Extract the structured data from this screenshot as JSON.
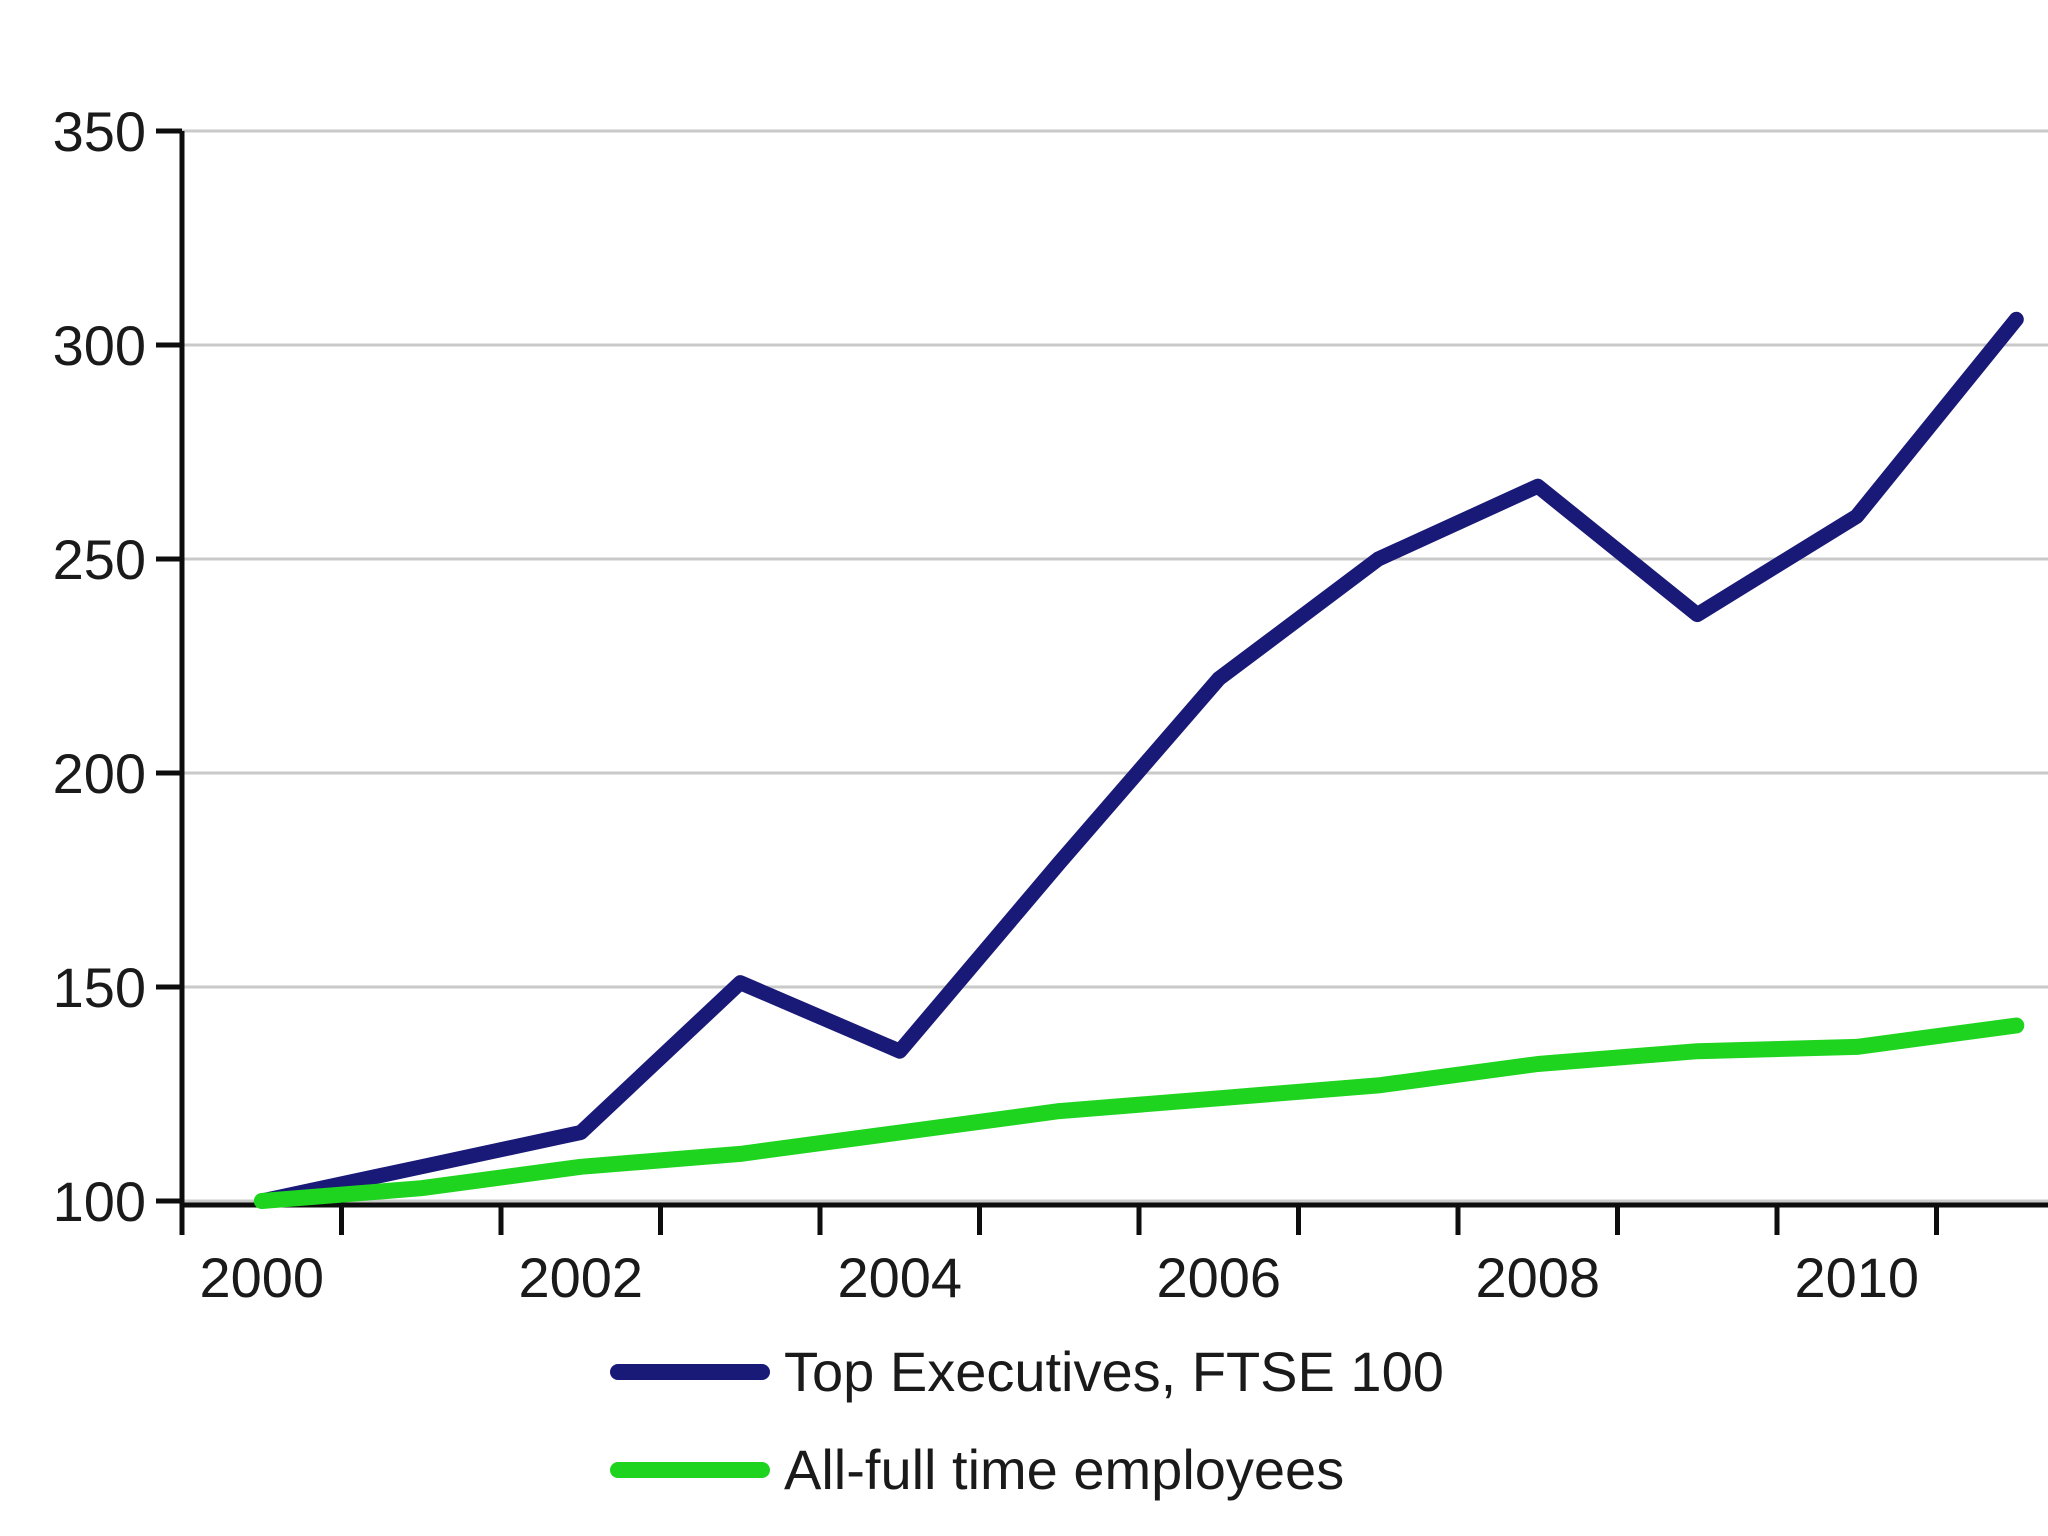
{
  "chart_data": {
    "type": "line",
    "title": "",
    "x": [
      2000,
      2001,
      2002,
      2003,
      2004,
      2005,
      2006,
      2007,
      2008,
      2009,
      2010,
      2011
    ],
    "x_tick_labels": [
      "2000",
      "2002",
      "2004",
      "2006",
      "2008",
      "2010"
    ],
    "y_ticks": [
      100,
      150,
      200,
      250,
      300,
      350
    ],
    "y_tick_labels": [
      "100",
      "150",
      "200",
      "250",
      "300",
      "350"
    ],
    "ylim": [
      100,
      350
    ],
    "xlabel": "",
    "ylabel": "",
    "grid": "horizontal",
    "legend_position": "bottom-left",
    "series": [
      {
        "name": "Top Executives, FTSE 100",
        "color": "#191978",
        "values": [
          100,
          108,
          116,
          151,
          135,
          179,
          222,
          250,
          267,
          237,
          260,
          306
        ]
      },
      {
        "name": "All-full time employees",
        "color": "#1ed41e",
        "values": [
          100,
          103,
          108,
          111,
          116,
          121,
          124,
          127,
          132,
          135,
          136,
          141
        ]
      }
    ],
    "styles": {
      "gridline_color": "#c9c9c9",
      "axis_color": "#0d0d0d",
      "tick_label_color": "#1a1a1a",
      "line_width": 15
    }
  }
}
